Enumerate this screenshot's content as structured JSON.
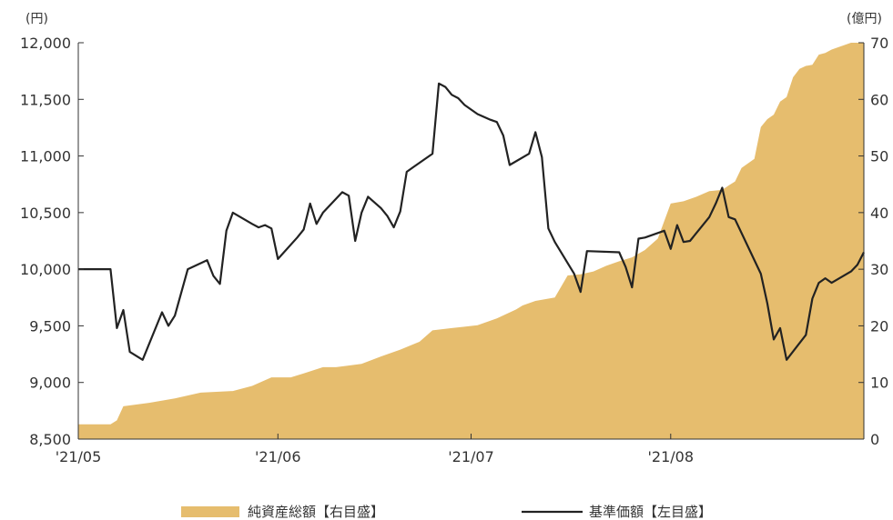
{
  "chart_data": {
    "type": "area+line",
    "title": "",
    "xlabel": "",
    "left_axis": {
      "unit": "(円)",
      "ylim": [
        8500,
        12000
      ],
      "ticks": [
        "8,500",
        "9,000",
        "9,500",
        "10,000",
        "10,500",
        "11,000",
        "11,500",
        "12,000"
      ],
      "tick_values": [
        8500,
        9000,
        9500,
        10000,
        10500,
        11000,
        11500,
        12000
      ]
    },
    "right_axis": {
      "unit": "(億円)",
      "ylim": [
        0,
        70
      ],
      "ticks": [
        "0",
        "10",
        "20",
        "30",
        "40",
        "50",
        "60",
        "70"
      ],
      "tick_values": [
        0,
        10,
        20,
        30,
        40,
        50,
        60,
        70
      ]
    },
    "x_ticks": [
      {
        "label": "'21/05",
        "date": "2021-05-01"
      },
      {
        "label": "'21/06",
        "date": "2021-06-01"
      },
      {
        "label": "'21/07",
        "date": "2021-07-01"
      },
      {
        "label": "'21/08",
        "date": "2021-08-01"
      }
    ],
    "x_range": [
      "2021-05-01",
      "2021-08-31"
    ],
    "grid": false,
    "legend_position": "bottom",
    "series": [
      {
        "name": "純資産総額【右目盛】",
        "kind": "area",
        "axis": "right",
        "color": "#e6bd6e",
        "points": [
          [
            "2021-05-01",
            2.6
          ],
          [
            "2021-05-06",
            2.6
          ],
          [
            "2021-05-07",
            3.3
          ],
          [
            "2021-05-08",
            5.8
          ],
          [
            "2021-05-12",
            6.4
          ],
          [
            "2021-05-16",
            7.2
          ],
          [
            "2021-05-20",
            8.2
          ],
          [
            "2021-05-25",
            8.5
          ],
          [
            "2021-05-28",
            9.4
          ],
          [
            "2021-05-31",
            10.9
          ],
          [
            "2021-06-03",
            10.9
          ],
          [
            "2021-06-05",
            11.6
          ],
          [
            "2021-06-08",
            12.7
          ],
          [
            "2021-06-10",
            12.7
          ],
          [
            "2021-06-14",
            13.3
          ],
          [
            "2021-06-17",
            14.6
          ],
          [
            "2021-06-20",
            15.8
          ],
          [
            "2021-06-23",
            17.2
          ],
          [
            "2021-06-25",
            19.2
          ],
          [
            "2021-06-28",
            19.6
          ],
          [
            "2021-07-02",
            20.1
          ],
          [
            "2021-07-05",
            21.3
          ],
          [
            "2021-07-08",
            22.9
          ],
          [
            "2021-07-09",
            23.6
          ],
          [
            "2021-07-11",
            24.4
          ],
          [
            "2021-07-14",
            25.0
          ],
          [
            "2021-07-16",
            28.9
          ],
          [
            "2021-07-18",
            29.1
          ],
          [
            "2021-07-20",
            29.6
          ],
          [
            "2021-07-22",
            30.6
          ],
          [
            "2021-07-24",
            31.4
          ],
          [
            "2021-07-26",
            32.1
          ],
          [
            "2021-07-28",
            33.4
          ],
          [
            "2021-07-30",
            35.4
          ],
          [
            "2021-08-01",
            41.6
          ],
          [
            "2021-08-03",
            42.0
          ],
          [
            "2021-08-05",
            42.8
          ],
          [
            "2021-08-07",
            43.8
          ],
          [
            "2021-08-09",
            44.0
          ],
          [
            "2021-08-10",
            44.8
          ],
          [
            "2021-08-11",
            45.5
          ],
          [
            "2021-08-12",
            47.9
          ],
          [
            "2021-08-14",
            49.5
          ],
          [
            "2021-08-15",
            55.1
          ],
          [
            "2021-08-16",
            56.5
          ],
          [
            "2021-08-17",
            57.3
          ],
          [
            "2021-08-18",
            59.6
          ],
          [
            "2021-08-19",
            60.4
          ],
          [
            "2021-08-20",
            63.9
          ],
          [
            "2021-08-21",
            65.4
          ],
          [
            "2021-08-22",
            65.9
          ],
          [
            "2021-08-23",
            66.1
          ],
          [
            "2021-08-24",
            67.9
          ],
          [
            "2021-08-25",
            68.2
          ],
          [
            "2021-08-26",
            68.8
          ],
          [
            "2021-08-27",
            69.2
          ],
          [
            "2021-08-28",
            69.6
          ],
          [
            "2021-08-29",
            70.0
          ],
          [
            "2021-08-31",
            70.0
          ]
        ]
      },
      {
        "name": "基準価額【左目盛】",
        "kind": "line",
        "axis": "left",
        "color": "#222222",
        "points": [
          [
            "2021-05-01",
            10000
          ],
          [
            "2021-05-06",
            10000
          ],
          [
            "2021-05-07",
            9480
          ],
          [
            "2021-05-08",
            9640
          ],
          [
            "2021-05-09",
            9270
          ],
          [
            "2021-05-11",
            9200
          ],
          [
            "2021-05-14",
            9620
          ],
          [
            "2021-05-15",
            9500
          ],
          [
            "2021-05-16",
            9590
          ],
          [
            "2021-05-18",
            10000
          ],
          [
            "2021-05-21",
            10080
          ],
          [
            "2021-05-22",
            9940
          ],
          [
            "2021-05-23",
            9870
          ],
          [
            "2021-05-24",
            10340
          ],
          [
            "2021-05-25",
            10500
          ],
          [
            "2021-05-28",
            10400
          ],
          [
            "2021-05-29",
            10370
          ],
          [
            "2021-05-30",
            10390
          ],
          [
            "2021-05-31",
            10360
          ],
          [
            "2021-06-01",
            10090
          ],
          [
            "2021-06-04",
            10280
          ],
          [
            "2021-06-05",
            10350
          ],
          [
            "2021-06-06",
            10580
          ],
          [
            "2021-06-07",
            10400
          ],
          [
            "2021-06-08",
            10500
          ],
          [
            "2021-06-11",
            10680
          ],
          [
            "2021-06-12",
            10650
          ],
          [
            "2021-06-13",
            10250
          ],
          [
            "2021-06-14",
            10500
          ],
          [
            "2021-06-15",
            10640
          ],
          [
            "2021-06-17",
            10540
          ],
          [
            "2021-06-18",
            10470
          ],
          [
            "2021-06-19",
            10370
          ],
          [
            "2021-06-20",
            10510
          ],
          [
            "2021-06-21",
            10860
          ],
          [
            "2021-06-22",
            10900
          ],
          [
            "2021-06-25",
            11020
          ],
          [
            "2021-06-26",
            11640
          ],
          [
            "2021-06-27",
            11610
          ],
          [
            "2021-06-28",
            11540
          ],
          [
            "2021-06-29",
            11510
          ],
          [
            "2021-06-30",
            11450
          ],
          [
            "2021-07-02",
            11370
          ],
          [
            "2021-07-04",
            11320
          ],
          [
            "2021-07-05",
            11300
          ],
          [
            "2021-07-06",
            11180
          ],
          [
            "2021-07-07",
            10920
          ],
          [
            "2021-07-10",
            11020
          ],
          [
            "2021-07-11",
            11210
          ],
          [
            "2021-07-12",
            10990
          ],
          [
            "2021-07-13",
            10360
          ],
          [
            "2021-07-14",
            10240
          ],
          [
            "2021-07-17",
            9960
          ],
          [
            "2021-07-18",
            9800
          ],
          [
            "2021-07-19",
            10160
          ],
          [
            "2021-07-24",
            10150
          ],
          [
            "2021-07-25",
            10020
          ],
          [
            "2021-07-26",
            9840
          ],
          [
            "2021-07-27",
            10270
          ],
          [
            "2021-07-28",
            10280
          ],
          [
            "2021-07-31",
            10340
          ],
          [
            "2021-08-01",
            10180
          ],
          [
            "2021-08-02",
            10390
          ],
          [
            "2021-08-03",
            10240
          ],
          [
            "2021-08-04",
            10250
          ],
          [
            "2021-08-07",
            10460
          ],
          [
            "2021-08-08",
            10580
          ],
          [
            "2021-08-09",
            10720
          ],
          [
            "2021-08-10",
            10460
          ],
          [
            "2021-08-11",
            10440
          ],
          [
            "2021-08-15",
            9960
          ],
          [
            "2021-08-16",
            9700
          ],
          [
            "2021-08-17",
            9380
          ],
          [
            "2021-08-18",
            9480
          ],
          [
            "2021-08-19",
            9200
          ],
          [
            "2021-08-22",
            9420
          ],
          [
            "2021-08-23",
            9740
          ],
          [
            "2021-08-24",
            9880
          ],
          [
            "2021-08-25",
            9920
          ],
          [
            "2021-08-26",
            9880
          ],
          [
            "2021-08-29",
            9980
          ],
          [
            "2021-08-30",
            10040
          ],
          [
            "2021-08-31",
            10150
          ]
        ]
      }
    ]
  }
}
